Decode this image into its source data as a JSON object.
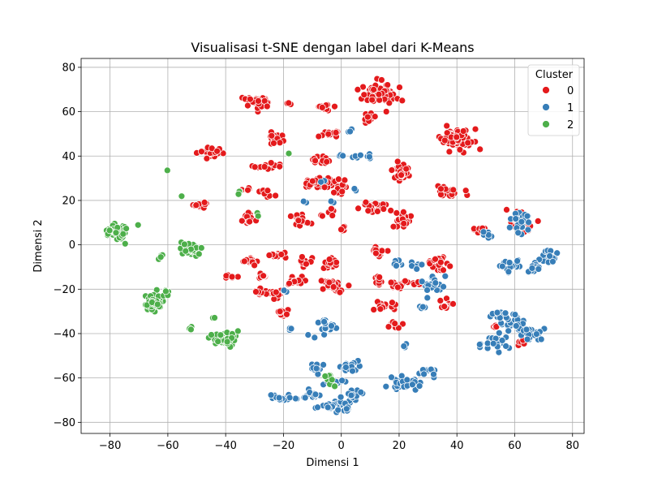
{
  "chart_data": {
    "type": "scatter",
    "title": "Visualisasi t-SNE dengan label dari K-Means",
    "xlabel": "Dimensi 1",
    "ylabel": "Dimensi 2",
    "xlim": [
      -90,
      84
    ],
    "ylim": [
      -85,
      84
    ],
    "xticks": [
      -80,
      -60,
      -40,
      -20,
      0,
      20,
      40,
      60,
      80
    ],
    "yticks": [
      -80,
      -60,
      -40,
      -20,
      0,
      20,
      40,
      60,
      80
    ],
    "xtick_labels": [
      "−80",
      "−60",
      "−40",
      "−20",
      "0",
      "20",
      "40",
      "60",
      "80"
    ],
    "ytick_labels": [
      "−80",
      "−60",
      "−40",
      "−20",
      "0",
      "20",
      "40",
      "60",
      "80"
    ],
    "grid": true,
    "legend": {
      "title": "Cluster",
      "placement": "top-right"
    },
    "series": [
      {
        "name": "0",
        "color": "#e41a1c",
        "clusters": [
          [
            -30,
            64,
            4,
            2.5,
            40
          ],
          [
            -18,
            64,
            1,
            1,
            4
          ],
          [
            -6,
            62,
            3,
            1.5,
            15
          ],
          [
            13,
            68,
            5,
            4,
            65
          ],
          [
            10,
            57,
            2,
            2,
            10
          ],
          [
            40,
            48,
            6,
            4,
            80
          ],
          [
            -22,
            48,
            3,
            2,
            20
          ],
          [
            -3,
            50,
            3,
            1.5,
            14
          ],
          [
            -45,
            42,
            3,
            2.5,
            30
          ],
          [
            20,
            33,
            3,
            3,
            30
          ],
          [
            -25,
            35,
            4,
            1.5,
            15
          ],
          [
            -7,
            38,
            3,
            1.5,
            15
          ],
          [
            -5,
            28,
            4,
            2,
            30
          ],
          [
            0,
            25,
            3,
            3,
            15
          ],
          [
            -10,
            28,
            2,
            2,
            10
          ],
          [
            37,
            23,
            4,
            2,
            30
          ],
          [
            -32,
            25,
            2,
            1,
            6
          ],
          [
            -25,
            23,
            2,
            1.5,
            8
          ],
          [
            -48,
            18,
            2.5,
            1.5,
            15
          ],
          [
            10,
            17,
            4,
            2.5,
            28
          ],
          [
            -14,
            11,
            3,
            2,
            18
          ],
          [
            -32,
            12,
            2.5,
            2.5,
            18
          ],
          [
            -4,
            15,
            2,
            2,
            8
          ],
          [
            21,
            11,
            3,
            2.5,
            25
          ],
          [
            0,
            7,
            1.5,
            1.5,
            5
          ],
          [
            48,
            6,
            2,
            2,
            8
          ],
          [
            63,
            10,
            4,
            5,
            40
          ],
          [
            12,
            -3,
            3,
            2.5,
            20
          ],
          [
            -4,
            -8,
            3,
            2,
            15
          ],
          [
            -22,
            -5,
            3,
            2,
            15
          ],
          [
            -31,
            -7,
            3,
            2,
            15
          ],
          [
            -12,
            -8,
            3,
            2,
            12
          ],
          [
            34,
            -8,
            4,
            3,
            25
          ],
          [
            -38,
            -14,
            2,
            1.5,
            8
          ],
          [
            -27,
            -14,
            2,
            1.5,
            8
          ],
          [
            -3,
            -18,
            4,
            2.5,
            25
          ],
          [
            -15,
            -16,
            3,
            2,
            15
          ],
          [
            -28,
            -21,
            3,
            2,
            15
          ],
          [
            -22,
            -22,
            2,
            2,
            10
          ],
          [
            13,
            -16,
            2,
            2,
            10
          ],
          [
            20,
            -18,
            3,
            2,
            15
          ],
          [
            36,
            -27,
            2,
            2,
            12
          ],
          [
            -20,
            -31,
            3,
            2,
            15
          ],
          [
            15,
            -28,
            3,
            2,
            15
          ],
          [
            18,
            -36,
            2,
            2,
            8
          ],
          [
            62,
            -44,
            2,
            1.5,
            6
          ],
          [
            53,
            -37,
            1.5,
            1,
            4
          ],
          [
            27,
            -17,
            2,
            1.5,
            6
          ]
        ]
      },
      {
        "name": "1",
        "color": "#377eb8",
        "clusters": [
          [
            3,
            51,
            1,
            1,
            3
          ],
          [
            0,
            40,
            1,
            1,
            3
          ],
          [
            5,
            40,
            2,
            1,
            4
          ],
          [
            10,
            40,
            2,
            1,
            4
          ],
          [
            5,
            25,
            1,
            1,
            3
          ],
          [
            -12,
            20,
            1,
            1,
            2
          ],
          [
            -3,
            19,
            1,
            1,
            2
          ],
          [
            -6,
            29,
            1,
            1,
            2
          ],
          [
            50,
            5,
            2,
            2,
            8
          ],
          [
            62,
            10,
            3,
            5,
            20
          ],
          [
            72,
            -5,
            3,
            3,
            25
          ],
          [
            58,
            -10,
            3,
            3,
            20
          ],
          [
            67,
            -10,
            2,
            2,
            10
          ],
          [
            25,
            -10,
            3,
            1.5,
            10
          ],
          [
            32,
            -18,
            4,
            4,
            20
          ],
          [
            20,
            -8,
            2,
            2,
            6
          ],
          [
            28,
            -28,
            1,
            1,
            4
          ],
          [
            -20,
            -21,
            1.5,
            1.5,
            4
          ],
          [
            -6,
            -38,
            3,
            3,
            20
          ],
          [
            -18,
            -38,
            1,
            1,
            3
          ],
          [
            60,
            -35,
            4,
            3,
            35
          ],
          [
            54,
            -44,
            4,
            3,
            25
          ],
          [
            66,
            -40,
            3,
            3,
            20
          ],
          [
            55,
            -32,
            3,
            2,
            10
          ],
          [
            -8,
            -56,
            3,
            2,
            14
          ],
          [
            3,
            -55,
            4,
            3,
            20
          ],
          [
            -3,
            -62,
            3,
            2,
            10
          ],
          [
            22,
            -62,
            5,
            3,
            30
          ],
          [
            30,
            -57,
            3,
            2,
            12
          ],
          [
            -20,
            -69,
            5,
            1.5,
            20
          ],
          [
            -10,
            -68,
            3,
            2,
            15
          ],
          [
            0,
            -72,
            3,
            3,
            20
          ],
          [
            4,
            -67,
            2,
            2,
            10
          ],
          [
            -4,
            -73,
            4,
            2,
            15
          ],
          [
            22,
            -45,
            1,
            1,
            3
          ]
        ]
      },
      {
        "name": "2",
        "color": "#4daf4a",
        "clusters": [
          [
            -78,
            6,
            3,
            3,
            60
          ],
          [
            -52,
            -2,
            3,
            3,
            45
          ],
          [
            -65,
            -26,
            3,
            3,
            50
          ],
          [
            -40,
            -42,
            4,
            3,
            50
          ],
          [
            -5,
            -60,
            2,
            1.5,
            8
          ],
          [
            -60,
            33,
            0.5,
            0.5,
            1
          ],
          [
            -35,
            24,
            1,
            1,
            3
          ],
          [
            -18,
            41,
            0.5,
            0.5,
            1
          ],
          [
            -55,
            22,
            0.5,
            0.5,
            1
          ],
          [
            -60,
            -22,
            2,
            2,
            6
          ],
          [
            -52,
            -37,
            1,
            1,
            3
          ],
          [
            -62,
            -5,
            1.5,
            1.5,
            4
          ],
          [
            -44,
            -33,
            1,
            1,
            3
          ],
          [
            -29,
            14,
            1,
            1,
            2
          ],
          [
            -70,
            9,
            0.5,
            0.5,
            1
          ],
          [
            -2,
            -64,
            0.5,
            0.5,
            1
          ]
        ]
      }
    ]
  }
}
